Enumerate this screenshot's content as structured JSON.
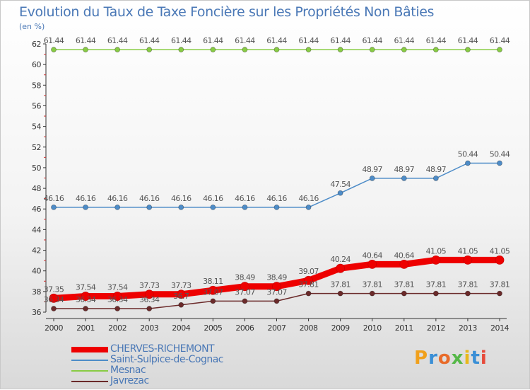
{
  "title": "Evolution du Taux de Taxe Foncière sur les Propriétés Non Bâties",
  "subtitle": "(en %)",
  "logo": {
    "text": "Proxiti",
    "colors": [
      "#f0a01c",
      "#3a8fd6",
      "#e86b2a",
      "#55b848",
      "#e8b81c",
      "#3a8fd6",
      "#e64a3a"
    ]
  },
  "chart_data": {
    "type": "line",
    "title": "Evolution du Taux de Taxe Foncière sur les Propriétés Non Bâties",
    "ylabel": "(en %)",
    "xlabel": "",
    "x": [
      "2000",
      "2001",
      "2002",
      "2003",
      "2004",
      "2005",
      "2006",
      "2007",
      "2008",
      "2009",
      "2010",
      "2011",
      "2012",
      "2013",
      "2014"
    ],
    "ylim": [
      36,
      62
    ],
    "yticks": [
      "36",
      "38",
      "40",
      "42",
      "44",
      "46",
      "48",
      "50",
      "52",
      "54",
      "56",
      "58",
      "60",
      "62"
    ],
    "grid": false,
    "series": [
      {
        "name": "Mesnac",
        "color": "#88cc44",
        "values": [
          61.44,
          61.44,
          61.44,
          61.44,
          61.44,
          61.44,
          61.44,
          61.44,
          61.44,
          61.44,
          61.44,
          61.44,
          61.44,
          61.44,
          61.44
        ],
        "labels": [
          "61.44",
          "61.44",
          "61.44",
          "61.44",
          "61.44",
          "61.44",
          "61.44",
          "61.44",
          "61.44",
          "61.44",
          "61.44",
          "61.44",
          "61.44",
          "61.44",
          "61.44"
        ]
      },
      {
        "name": "Saint-Sulpice-de-Cognac",
        "color": "#4d8cc8",
        "values": [
          46.16,
          46.16,
          46.16,
          46.16,
          46.16,
          46.16,
          46.16,
          46.16,
          46.16,
          47.54,
          48.97,
          48.97,
          48.97,
          50.44,
          50.44
        ],
        "labels": [
          "46.16",
          "46.16",
          "46.16",
          "46.16",
          "46.16",
          "46.16",
          "46.16",
          "46.16",
          "46.16",
          "47.54",
          "48.97",
          "48.97",
          "48.97",
          "50.44",
          "50.44"
        ]
      },
      {
        "name": "Javrezac",
        "color": "#6b2a2a",
        "values": [
          36.34,
          36.34,
          36.34,
          36.34,
          36.7,
          37.07,
          37.07,
          37.07,
          37.81,
          37.81,
          37.81,
          37.81,
          37.81,
          37.81,
          37.81
        ],
        "labels": [
          "36.34",
          "36.34",
          "36.34",
          "36.34",
          "36.7",
          "37.07",
          "37.07",
          "37.07",
          "37.81",
          "37.81",
          "37.81",
          "37.81",
          "37.81",
          "37.81",
          "37.81"
        ]
      },
      {
        "name": "CHERVES-RICHEMONT",
        "color": "#ee0000",
        "values": [
          37.35,
          37.54,
          37.54,
          37.73,
          37.73,
          38.11,
          38.49,
          38.49,
          39.07,
          40.24,
          40.64,
          40.64,
          41.05,
          41.05,
          41.05
        ],
        "labels": [
          "37.35",
          "37.54",
          "37.54",
          "37.73",
          "37.73",
          "38.11",
          "38.49",
          "38.49",
          "39.07",
          "40.24",
          "40.64",
          "40.64",
          "41.05",
          "41.05",
          "41.05"
        ]
      }
    ],
    "legend": [
      "CHERVES-RICHEMONT",
      "Saint-Sulpice-de-Cognac",
      "Mesnac",
      "Javrezac"
    ],
    "legend_position": "bottom-left"
  }
}
